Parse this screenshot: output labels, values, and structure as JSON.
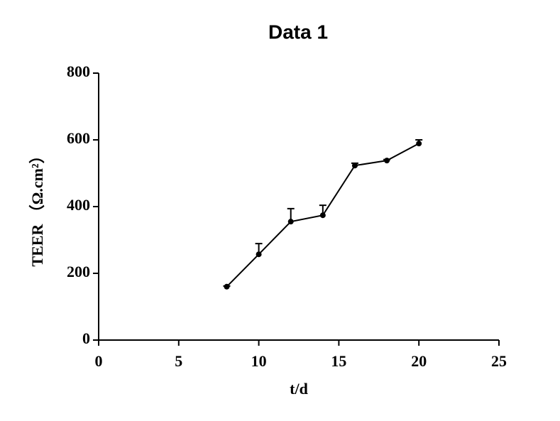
{
  "chart_data": {
    "type": "line",
    "title": "Data 1",
    "xlabel": "t/d",
    "ylabel": "TEER （Ω.cm²）",
    "x": [
      8,
      10,
      12,
      14,
      16,
      18,
      20
    ],
    "values": [
      160,
      257,
      355,
      374,
      523,
      538,
      589
    ],
    "errors": [
      2,
      32,
      39,
      30,
      7,
      3,
      11
    ],
    "color": "#000000",
    "xlim": [
      0,
      25
    ],
    "xticks": [
      0,
      5,
      10,
      15,
      20,
      25
    ],
    "ylim": [
      0,
      800
    ],
    "yticks": [
      0,
      200,
      400,
      600,
      800
    ]
  }
}
